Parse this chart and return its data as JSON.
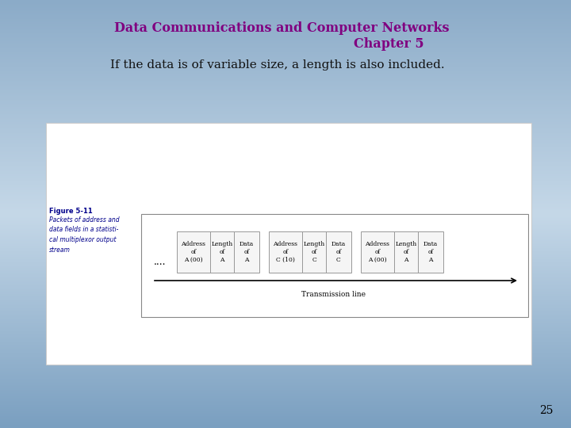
{
  "bg_color_top": "#8babc8",
  "bg_color_mid": "#b8cfe0",
  "bg_color_bot": "#7a9fc0",
  "white_box_color": "#ffffff",
  "title_line1": "Data Communications and Computer Networks",
  "title_line2": "Chapter 5",
  "title_color": "#800080",
  "subtitle": "If the data is of variable size, a length is also included.",
  "subtitle_color": "#111111",
  "figure_label": "Figure 5-11",
  "figure_caption": "Packets of address and\ndata fields in a statisti-\ncal multiplexor output\nstream",
  "caption_color": "#00008b",
  "packets": [
    [
      "Address\nof\nA (00)",
      "Length\nof\nA",
      "Data\nof\nA"
    ],
    [
      "Address\nof\nC (10)",
      "Length\nof\nC",
      "Data\nof\nC"
    ],
    [
      "Address\nof\nA (00)",
      "Length\nof\nA",
      "Data\nof\nA"
    ]
  ],
  "transmission_line_label": "Transmission line",
  "page_number": "25",
  "box_fill": "#f5f5f5",
  "box_edge": "#999999",
  "inner_box_fill": "#ffffff",
  "inner_box_edge": "#aaaaaa"
}
